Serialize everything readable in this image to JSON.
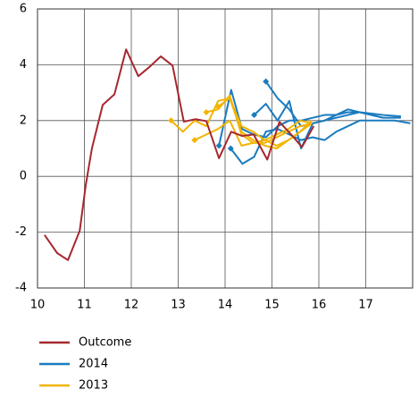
{
  "chart_data": {
    "type": "line",
    "xlim": [
      10,
      18
    ],
    "xticks": [
      10,
      11,
      12,
      13,
      14,
      15,
      16,
      17
    ],
    "ylim": [
      -4,
      6
    ],
    "yticks": [
      -4,
      -2,
      0,
      2,
      4,
      6
    ],
    "grid": true,
    "legend": "bottom",
    "series": [
      {
        "name": "Outcome",
        "color": "#a6282e",
        "x": [
          10.15,
          10.42,
          10.65,
          10.9,
          11.03,
          11.16,
          11.39,
          11.64,
          11.89,
          12.15,
          12.38,
          12.63,
          12.88,
          13.12,
          13.37,
          13.6,
          13.87,
          14.13,
          14.36,
          14.61,
          14.9,
          15.16,
          15.41,
          15.64,
          15.89
        ],
        "values": [
          -2.1,
          -2.75,
          -3.0,
          -1.95,
          -0.3,
          1.0,
          2.56,
          2.94,
          4.55,
          3.59,
          3.91,
          4.3,
          3.97,
          1.96,
          2.05,
          1.98,
          0.65,
          1.6,
          1.45,
          1.5,
          0.6,
          1.95,
          1.5,
          1.05,
          1.8
        ]
      },
      {
        "name": "2014",
        "color": "#1a7bbf",
        "forecasts": [
          {
            "x": [
              13.87,
              14.13,
              14.36,
              14.61,
              14.87,
              15.12,
              15.37,
              15.62,
              15.87,
              16.12,
              16.37,
              16.62,
              16.87,
              17.12,
              17.37,
              17.75
            ],
            "values": [
              1.1,
              3.1,
              1.7,
              1.5,
              1.4,
              1.8,
              2.0,
              2.0,
              2.1,
              2.2,
              2.2,
              2.3,
              2.3,
              2.25,
              2.2,
              2.15
            ]
          },
          {
            "x": [
              14.12,
              14.37,
              14.62,
              14.87,
              15.12,
              15.37,
              15.62,
              15.87,
              16.12,
              16.37,
              16.62,
              16.87,
              17.12,
              17.37,
              17.62,
              17.95
            ],
            "values": [
              1.0,
              0.45,
              0.7,
              1.6,
              1.7,
              1.5,
              1.3,
              1.4,
              1.3,
              1.6,
              1.8,
              2.0,
              2.0,
              2.0,
              2.0,
              1.9
            ]
          },
          {
            "x": [
              14.62,
              14.87,
              15.12,
              15.37,
              15.62,
              15.87,
              16.12,
              16.37,
              16.62,
              16.87,
              17.12,
              17.37
            ],
            "values": [
              2.2,
              2.6,
              2.0,
              2.7,
              1.0,
              1.9,
              2.0,
              2.1,
              2.2,
              2.3,
              2.2,
              2.1
            ]
          },
          {
            "x": [
              14.87,
              15.12,
              15.37,
              15.62,
              15.87,
              16.12,
              16.37,
              16.62,
              16.87,
              17.12,
              17.37,
              17.75
            ],
            "values": [
              3.4,
              2.8,
              2.4,
              1.8,
              1.9,
              2.0,
              2.2,
              2.4,
              2.3,
              2.2,
              2.1,
              2.1
            ]
          }
        ]
      },
      {
        "name": "2013",
        "color": "#f2b400",
        "forecasts": [
          {
            "x": [
              12.85,
              13.1,
              13.35,
              13.6,
              13.85,
              14.1,
              14.35,
              14.6,
              14.85,
              15.1,
              15.35,
              15.6,
              15.85
            ],
            "values": [
              2.0,
              1.6,
              2.0,
              1.8,
              2.7,
              2.8,
              1.6,
              1.3,
              1.1,
              1.0,
              1.3,
              1.6,
              1.9
            ]
          },
          {
            "x": [
              13.35,
              13.6,
              13.85,
              14.1,
              14.35,
              14.6,
              14.85,
              15.1,
              15.35,
              15.6,
              15.85
            ],
            "values": [
              1.3,
              1.5,
              1.7,
              2.0,
              1.1,
              1.2,
              1.3,
              1.5,
              1.7,
              2.0,
              1.9
            ]
          },
          {
            "x": [
              13.6,
              13.85,
              14.1,
              14.35,
              14.6,
              14.85,
              15.1,
              15.35,
              15.6,
              15.85
            ],
            "values": [
              2.3,
              2.4,
              2.9,
              1.5,
              1.2,
              1.2,
              1.4,
              1.6,
              1.8,
              1.9
            ]
          },
          {
            "x": [
              13.85,
              14.1,
              14.35,
              14.6,
              14.85,
              15.1,
              15.35,
              15.6,
              15.85
            ],
            "values": [
              2.5,
              2.8,
              1.8,
              1.6,
              1.3,
              1.1,
              1.3,
              1.6,
              2.0
            ]
          }
        ]
      }
    ]
  }
}
